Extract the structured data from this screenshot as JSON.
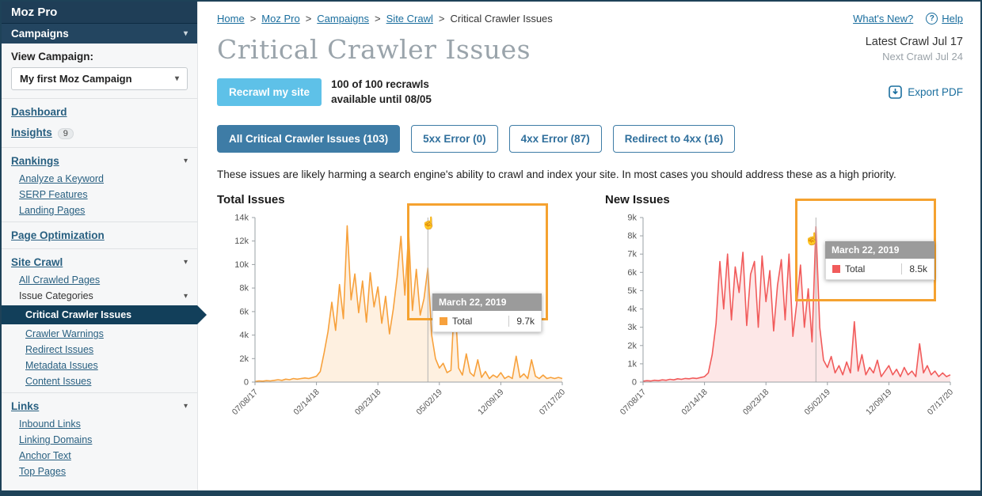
{
  "sidebar": {
    "brand": "Moz Pro",
    "campaigns": "Campaigns",
    "view_campaign_label": "View Campaign:",
    "campaign_name": "My first Moz Campaign",
    "dashboard": "Dashboard",
    "insights": "Insights",
    "insights_badge": "9",
    "rankings": "Rankings",
    "rankings_sub": [
      "Analyze a Keyword",
      "SERP Features",
      "Landing Pages"
    ],
    "page_optimization": "Page Optimization",
    "site_crawl": "Site Crawl",
    "all_crawled_pages": "All Crawled Pages",
    "issue_categories": "Issue Categories",
    "issue_categories_sub": [
      "Critical Crawler Issues",
      "Crawler Warnings",
      "Redirect Issues",
      "Metadata Issues",
      "Content Issues"
    ],
    "links": "Links",
    "links_sub": [
      "Inbound Links",
      "Linking Domains",
      "Anchor Text",
      "Top Pages"
    ]
  },
  "breadcrumb": {
    "items": [
      "Home",
      "Moz Pro",
      "Campaigns",
      "Site Crawl"
    ],
    "current": "Critical Crawler Issues"
  },
  "header": {
    "whats_new": "What's New?",
    "help": "Help"
  },
  "page": {
    "title": "Critical Crawler Issues",
    "latest_crawl": "Latest Crawl Jul 17",
    "next_crawl": "Next Crawl Jul 24"
  },
  "recrawl": {
    "button": "Recrawl my site",
    "line1": "100 of 100 recrawls",
    "line2": "available until 08/05",
    "export_pdf": "Export PDF"
  },
  "filters": [
    {
      "label": "All Critical Crawler Issues (103)",
      "active": true
    },
    {
      "label": "5xx Error (0)",
      "active": false
    },
    {
      "label": "4xx Error (87)",
      "active": false
    },
    {
      "label": "Redirect to 4xx (16)",
      "active": false
    }
  ],
  "description": "These issues are likely harming a search engine's ability to crawl and index your site. In most cases you should address these as a high priority.",
  "colors": {
    "accent_blue": "#3e7ca6",
    "recrawl_blue": "#5ec1e8",
    "link": "#1a6e9e",
    "highlight_orange": "#f5a230",
    "sidebar_dark": "#1f3e57",
    "active_nav": "#123f5a"
  },
  "chart_data": [
    {
      "type": "area",
      "title": "Total Issues",
      "x_tick_labels": [
        "07/08/17",
        "02/14/18",
        "09/23/18",
        "05/02/19",
        "12/09/19",
        "07/17/20"
      ],
      "y_tick_labels": [
        "0",
        "2k",
        "4k",
        "6k",
        "8k",
        "10k",
        "12k",
        "14k"
      ],
      "ylim": [
        0,
        14
      ],
      "unit": "k",
      "legend_position": "tooltip-only",
      "grid": false,
      "series": [
        {
          "name": "Total",
          "color": "#f7a13c",
          "fill": "rgba(247,161,60,0.16)",
          "values": [
            0.05,
            0.1,
            0.08,
            0.12,
            0.1,
            0.15,
            0.2,
            0.15,
            0.25,
            0.2,
            0.3,
            0.25,
            0.3,
            0.35,
            0.3,
            0.4,
            0.5,
            0.9,
            2.5,
            4.3,
            6.8,
            4.4,
            8.3,
            5.4,
            13.3,
            7.0,
            9.2,
            5.9,
            8.6,
            5.1,
            9.3,
            6.4,
            8.1,
            5.0,
            7.3,
            4.1,
            6.2,
            8.9,
            12.4,
            7.4,
            12.7,
            6.1,
            9.6,
            5.7,
            7.1,
            9.7,
            4.0,
            2.0,
            1.2,
            1.6,
            0.8,
            1.0,
            7.3,
            1.2,
            0.6,
            2.4,
            0.8,
            0.5,
            1.9,
            0.4,
            0.9,
            0.3,
            0.6,
            0.4,
            0.8,
            0.3,
            0.5,
            0.3,
            2.2,
            0.4,
            0.7,
            0.3,
            1.9,
            0.5,
            0.3,
            0.6,
            0.3,
            0.4,
            0.3,
            0.4,
            0.3
          ]
        }
      ],
      "crosshair_index": 45,
      "tooltip": {
        "date": "March 22, 2019",
        "series": "Total",
        "value": "9.7k"
      }
    },
    {
      "type": "area",
      "title": "New Issues",
      "x_tick_labels": [
        "07/08/17",
        "02/14/18",
        "09/23/18",
        "05/02/19",
        "12/09/19",
        "07/17/20"
      ],
      "y_tick_labels": [
        "0",
        "1k",
        "2k",
        "3k",
        "4k",
        "5k",
        "6k",
        "7k",
        "8k",
        "9k"
      ],
      "ylim": [
        0,
        9
      ],
      "unit": "k",
      "legend_position": "tooltip-only",
      "grid": false,
      "series": [
        {
          "name": "Total",
          "color": "#f15b5b",
          "fill": "rgba(241,91,91,0.15)",
          "values": [
            0.05,
            0.08,
            0.06,
            0.1,
            0.08,
            0.12,
            0.1,
            0.15,
            0.12,
            0.18,
            0.15,
            0.2,
            0.18,
            0.22,
            0.2,
            0.25,
            0.3,
            0.5,
            1.5,
            3.2,
            6.6,
            4.0,
            7.0,
            3.4,
            6.3,
            4.9,
            7.1,
            3.1,
            5.9,
            6.6,
            3.0,
            6.9,
            4.4,
            6.1,
            2.8,
            5.3,
            6.7,
            3.4,
            7.0,
            2.5,
            4.3,
            6.4,
            3.0,
            5.1,
            2.2,
            8.5,
            3.0,
            1.2,
            0.8,
            1.4,
            0.5,
            0.9,
            0.4,
            1.1,
            0.5,
            3.3,
            0.6,
            1.5,
            0.4,
            0.8,
            0.5,
            1.2,
            0.3,
            0.6,
            0.9,
            0.4,
            0.7,
            0.3,
            0.8,
            0.4,
            0.6,
            0.3,
            2.1,
            0.5,
            0.9,
            0.4,
            0.6,
            0.3,
            0.5,
            0.3,
            0.4
          ]
        }
      ],
      "crosshair_index": 45,
      "tooltip": {
        "date": "March 22, 2019",
        "series": "Total",
        "value": "8.5k"
      }
    }
  ]
}
